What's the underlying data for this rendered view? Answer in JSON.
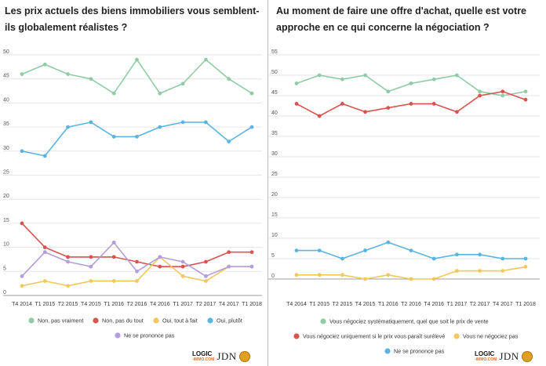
{
  "left_title": "Les prix actuels des biens immobiliers vous semblent-ils globalement réalistes ?",
  "right_title": "Au moment de faire une offre d'achat, quelle est votre approche en ce qui concerne la négociation ?",
  "footer": {
    "logo_logic": "LOGIC",
    "logo_immo": "-IMMO.COM",
    "logo_jdn": "JDN"
  },
  "chart_data": [
    {
      "type": "line",
      "title": "Les prix actuels des biens immobiliers vous semblent-ils globalement réalistes ?",
      "x": [
        "T4 2014",
        "T1 2015",
        "T2 2015",
        "T4 2015",
        "T1 2016",
        "T2 2016",
        "T4 2016",
        "T1 2017",
        "T2 2017",
        "T4 2017",
        "T1 2018"
      ],
      "ylim": [
        0,
        50
      ],
      "yticks": [
        0,
        5,
        10,
        15,
        20,
        25,
        30,
        35,
        40,
        45,
        50
      ],
      "grid": true,
      "legend": "bottom",
      "series": [
        {
          "name": "Non, pas vraiment",
          "color": "#8fcca6",
          "values": [
            46,
            48,
            46,
            45,
            42,
            49,
            42,
            44,
            49,
            45,
            42
          ]
        },
        {
          "name": "Non, pas du tout",
          "color": "#d9534f",
          "values": [
            15,
            10,
            8,
            8,
            8,
            7,
            6,
            6,
            7,
            9,
            9
          ]
        },
        {
          "name": "Oui, tout à fait",
          "color": "#f2c75c",
          "values": [
            2,
            3,
            2,
            3,
            3,
            3,
            8,
            4,
            3,
            6,
            6
          ]
        },
        {
          "name": "Oui, plutôt",
          "color": "#5bb4e0",
          "values": [
            30,
            29,
            35,
            36,
            33,
            33,
            35,
            36,
            36,
            32,
            35
          ]
        },
        {
          "name": "Ne se prononce pas",
          "color": "#b39ddb",
          "values": [
            4,
            9,
            7,
            6,
            11,
            5,
            8,
            7,
            4,
            6,
            6
          ]
        }
      ]
    },
    {
      "type": "line",
      "title": "Au moment de faire une offre d'achat, quelle est votre approche en ce qui concerne la négociation ?",
      "x": [
        "T4 2014",
        "T1 2015",
        "T2 2015",
        "T4 2015",
        "T1 2016",
        "T2 2016",
        "T4 2016",
        "T1 2017",
        "T2 2017",
        "T4 2017",
        "T1 2018"
      ],
      "ylim": [
        0,
        55
      ],
      "yticks": [
        0,
        5,
        10,
        15,
        20,
        25,
        30,
        35,
        40,
        45,
        50,
        55
      ],
      "grid": true,
      "legend": "bottom",
      "series": [
        {
          "name": "Vous négociez systématiquement, quel que soit le prix de vente",
          "color": "#8fcca6",
          "values": [
            48,
            50,
            49,
            50,
            46,
            48,
            49,
            50,
            46,
            45,
            46
          ]
        },
        {
          "name": "Vous négociez uniquement si le prix vous paraît surélevé",
          "color": "#d9534f",
          "values": [
            43,
            40,
            43,
            41,
            42,
            43,
            43,
            41,
            45,
            46,
            44
          ]
        },
        {
          "name": "Vous ne négociez pas",
          "color": "#f2c75c",
          "values": [
            1,
            1,
            1,
            0,
            1,
            0,
            0,
            2,
            2,
            2,
            3
          ]
        },
        {
          "name": "Ne se prononce pas",
          "color": "#5bb4e0",
          "values": [
            7,
            7,
            5,
            7,
            9,
            7,
            5,
            6,
            6,
            5,
            5
          ]
        }
      ]
    }
  ]
}
